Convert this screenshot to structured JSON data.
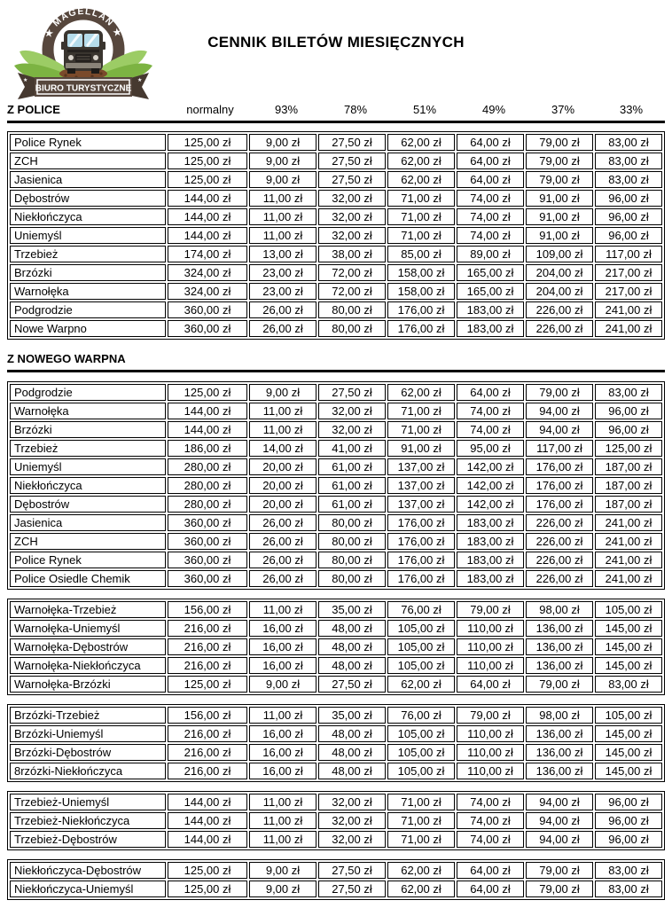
{
  "title": "CENNIK BILETÓW MIESIĘCZNYCH",
  "logo": {
    "brand_arc": "★ MAGELLAN ★",
    "subtitle": "BIURO TURYSTYCZNE",
    "colors": {
      "ring_brown": "#57473d",
      "ribbon_dark": "#463930",
      "leaf_light": "#9ccc65",
      "leaf_mid": "#7cb342",
      "leaf_dark": "#558b2f",
      "windshield_blue": "#b5dcea",
      "dirt_brown": "#7a4a2b"
    }
  },
  "columns": [
    "normalny",
    "93%",
    "78%",
    "51%",
    "49%",
    "37%",
    "33%"
  ],
  "sections": [
    {
      "heading": "Z POLICE",
      "show_columns": true,
      "tables": [
        {
          "rows": [
            {
              "name": "Police Rynek",
              "values": [
                "125,00 zł",
                "9,00 zł",
                "27,50 zł",
                "62,00 zł",
                "64,00 zł",
                "79,00 zł",
                "83,00 zł"
              ]
            },
            {
              "name": "ZCH",
              "values": [
                "125,00 zł",
                "9,00 zł",
                "27,50 zł",
                "62,00 zł",
                "64,00 zł",
                "79,00 zł",
                "83,00 zł"
              ]
            },
            {
              "name": "Jasienica",
              "values": [
                "125,00 zł",
                "9,00 zł",
                "27,50 zł",
                "62,00 zł",
                "64,00 zł",
                "79,00 zł",
                "83,00 zł"
              ]
            },
            {
              "name": "Dębostrów",
              "values": [
                "144,00 zł",
                "11,00 zł",
                "32,00 zł",
                "71,00 zł",
                "74,00 zł",
                "91,00 zł",
                "96,00 zł"
              ]
            },
            {
              "name": "Niekłończyca",
              "values": [
                "144,00 zł",
                "11,00 zł",
                "32,00 zł",
                "71,00 zł",
                "74,00 zł",
                "91,00 zł",
                "96,00 zł"
              ]
            },
            {
              "name": "Uniemyśl",
              "values": [
                "144,00 zł",
                "11,00 zł",
                "32,00 zł",
                "71,00 zł",
                "74,00 zł",
                "91,00 zł",
                "96,00 zł"
              ]
            },
            {
              "name": "Trzebież",
              "values": [
                "174,00 zł",
                "13,00 zł",
                "38,00 zł",
                "85,00 zł",
                "89,00 zł",
                "109,00 zł",
                "117,00 zł"
              ]
            },
            {
              "name": "Brzózki",
              "values": [
                "324,00 zł",
                "23,00 zł",
                "72,00 zł",
                "158,00 zł",
                "165,00 zł",
                "204,00 zł",
                "217,00 zł"
              ]
            },
            {
              "name": "Warnołęka",
              "values": [
                "324,00 zł",
                "23,00 zł",
                "72,00 zł",
                "158,00 zł",
                "165,00 zł",
                "204,00 zł",
                "217,00 zł"
              ]
            },
            {
              "name": "Podgrodzie",
              "values": [
                "360,00 zł",
                "26,00 zł",
                "80,00 zł",
                "176,00 zł",
                "183,00 zł",
                "226,00 zł",
                "241,00 zł"
              ]
            },
            {
              "name": "Nowe Warpno",
              "values": [
                "360,00 zł",
                "26,00 zł",
                "80,00 zł",
                "176,00 zł",
                "183,00 zł",
                "226,00 zł",
                "241,00 zł"
              ]
            }
          ]
        }
      ]
    },
    {
      "heading": "Z NOWEGO WARPNA",
      "show_columns": false,
      "tables": [
        {
          "rows": [
            {
              "name": "Podgrodzie",
              "values": [
                "125,00 zł",
                "9,00 zł",
                "27,50 zł",
                "62,00 zł",
                "64,00 zł",
                "79,00 zł",
                "83,00 zł"
              ]
            },
            {
              "name": "Warnołęka",
              "values": [
                "144,00 zł",
                "11,00 zł",
                "32,00 zł",
                "71,00 zł",
                "74,00 zł",
                "94,00 zł",
                "96,00 zł"
              ]
            },
            {
              "name": "Brzózki",
              "values": [
                "144,00 zł",
                "11,00 zł",
                "32,00 zł",
                "71,00 zł",
                "74,00 zł",
                "94,00 zł",
                "96,00 zł"
              ]
            },
            {
              "name": "Trzebież",
              "values": [
                "186,00 zł",
                "14,00 zł",
                "41,00 zł",
                "91,00 zł",
                "95,00 zł",
                "117,00 zł",
                "125,00 zł"
              ]
            },
            {
              "name": "Uniemyśl",
              "values": [
                "280,00 zł",
                "20,00 zł",
                "61,00 zł",
                "137,00 zł",
                "142,00 zł",
                "176,00 zł",
                "187,00 zł"
              ]
            },
            {
              "name": "Niekłończyca",
              "values": [
                "280,00 zł",
                "20,00 zł",
                "61,00 zł",
                "137,00 zł",
                "142,00 zł",
                "176,00 zł",
                "187,00 zł"
              ]
            },
            {
              "name": "Dębostrów",
              "values": [
                "280,00 zł",
                "20,00 zł",
                "61,00 zł",
                "137,00 zł",
                "142,00 zł",
                "176,00 zł",
                "187,00 zł"
              ]
            },
            {
              "name": "Jasienica",
              "values": [
                "360,00 zł",
                "26,00 zł",
                "80,00 zł",
                "176,00 zł",
                "183,00 zł",
                "226,00 zł",
                "241,00 zł"
              ]
            },
            {
              "name": "ZCH",
              "values": [
                "360,00 zł",
                "26,00 zł",
                "80,00 zł",
                "176,00 zł",
                "183,00 zł",
                "226,00 zł",
                "241,00 zł"
              ]
            },
            {
              "name": "Police Rynek",
              "values": [
                "360,00 zł",
                "26,00 zł",
                "80,00 zł",
                "176,00 zł",
                "183,00 zł",
                "226,00 zł",
                "241,00 zł"
              ]
            },
            {
              "name": "Police Osiedle Chemik",
              "values": [
                "360,00 zł",
                "26,00 zł",
                "80,00 zł",
                "176,00 zł",
                "183,00 zł",
                "226,00 zł",
                "241,00 zł"
              ]
            }
          ]
        },
        {
          "rows": [
            {
              "name": "Warnołęka-Trzebież",
              "values": [
                "156,00 zł",
                "11,00 zł",
                "35,00 zł",
                "76,00 zł",
                "79,00 zł",
                "98,00 zł",
                "105,00 zł"
              ]
            },
            {
              "name": "Warnołęka-Uniemyśl",
              "values": [
                "216,00 zł",
                "16,00 zł",
                "48,00 zł",
                "105,00 zł",
                "110,00 zł",
                "136,00 zł",
                "145,00 zł"
              ]
            },
            {
              "name": "Warnołęka-Dębostrów",
              "values": [
                "216,00 zł",
                "16,00 zł",
                "48,00 zł",
                "105,00 zł",
                "110,00 zł",
                "136,00 zł",
                "145,00 zł"
              ]
            },
            {
              "name": "Warnołęka-Niekłończyca",
              "values": [
                "216,00 zł",
                "16,00 zł",
                "48,00 zł",
                "105,00 zł",
                "110,00 zł",
                "136,00 zł",
                "145,00 zł"
              ]
            },
            {
              "name": "Warnołęka-Brzózki",
              "values": [
                "125,00 zł",
                "9,00 zł",
                "27,50 zł",
                "62,00 zł",
                "64,00 zł",
                "79,00 zł",
                "83,00 zł"
              ]
            }
          ]
        },
        {
          "rows": [
            {
              "name": "Brzózki-Trzebież",
              "values": [
                "156,00 zł",
                "11,00 zł",
                "35,00 zł",
                "76,00 zł",
                "79,00 zł",
                "98,00 zł",
                "105,00 zł"
              ]
            },
            {
              "name": "Brzózki-Uniemyśl",
              "values": [
                "216,00 zł",
                "16,00 zł",
                "48,00 zł",
                "105,00 zł",
                "110,00 zł",
                "136,00 zł",
                "145,00 zł"
              ]
            },
            {
              "name": "Brzózki-Dębostrów",
              "values": [
                "216,00 zł",
                "16,00 zł",
                "48,00 zł",
                "105,00 zł",
                "110,00 zł",
                "136,00 zł",
                "145,00 zł"
              ]
            },
            {
              "name": "8rzózki-Niekłończyca",
              "values": [
                "216,00 zł",
                "16,00 zł",
                "48,00 zł",
                "105,00 zł",
                "110,00 zł",
                "136,00 zł",
                "145,00 zł"
              ]
            }
          ]
        },
        {
          "rows": [
            {
              "name": "Trzebież-Uniemyśl",
              "values": [
                "144,00 zł",
                "11,00 zł",
                "32,00 zł",
                "71,00 zł",
                "74,00 zł",
                "94,00 zł",
                "96,00 zł"
              ]
            },
            {
              "name": "Trzebież-Niekłończyca",
              "values": [
                "144,00 zł",
                "11,00 zł",
                "32,00 zł",
                "71,00 zł",
                "74,00 zł",
                "94,00 zł",
                "96,00 zł"
              ]
            },
            {
              "name": "Trzebież-Dębostrów",
              "values": [
                "144,00 zł",
                "11,00 zł",
                "32,00 zł",
                "71,00 zł",
                "74,00 zł",
                "94,00 zł",
                "96,00 zł"
              ]
            }
          ]
        },
        {
          "rows": [
            {
              "name": "Niekłończyca-Dębostrów",
              "values": [
                "125,00 zł",
                "9,00 zł",
                "27,50 zł",
                "62,00 zł",
                "64,00 zł",
                "79,00 zł",
                "83,00 zł"
              ]
            },
            {
              "name": "Niekłończyca-Uniemyśl",
              "values": [
                "125,00 zł",
                "9,00 zł",
                "27,50 zł",
                "62,00 zł",
                "64,00 zł",
                "79,00 zł",
                "83,00 zł"
              ]
            }
          ]
        }
      ]
    }
  ]
}
